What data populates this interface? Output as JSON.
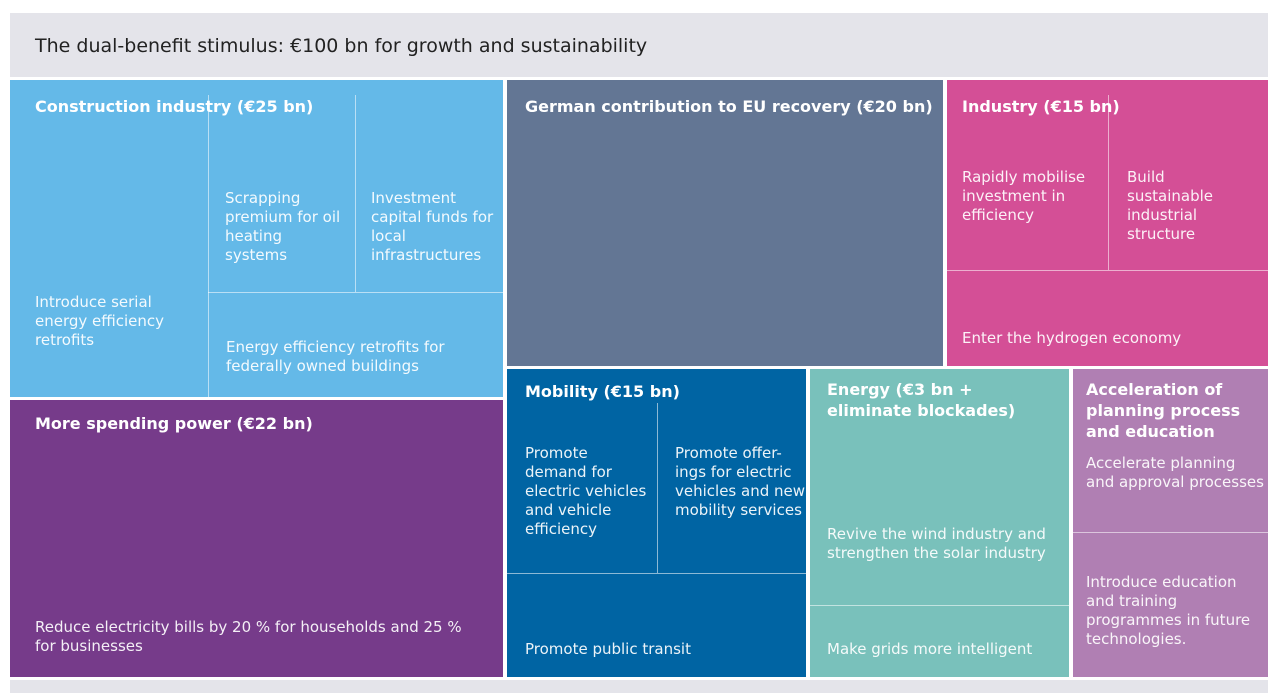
{
  "header": {
    "title": "The dual-benefit stimulus: €100 bn for growth and sustainability"
  },
  "blocks": [
    {
      "title": "Construction industry (€25 bn)",
      "items": [
        "Introduce serial energy efficiency retrofits",
        "Scrapping premium for oil heating systems",
        "Investment capital funds for local infrastructures",
        "Energy efficiency retrofits for federally owned buildings"
      ]
    },
    {
      "title": "More spending power (€22 bn)",
      "items": [
        "Reduce electricity bills by 20 % for households and 25 % for businesses"
      ]
    },
    {
      "title": "German contribution to EU recovery (€20 bn)",
      "items": []
    },
    {
      "title": "Industry (€15 bn)",
      "items": [
        "Rapidly mobilise investment in efficiency",
        "Build sustainable industrial structure",
        "Enter the hydrogen economy"
      ]
    },
    {
      "title": "Mobility (€15 bn)",
      "items": [
        "Promote demand for electric vehicles and vehicle efficiency",
        "Promote offer-ings for electric vehicles and new mobility services",
        "Promote public transit"
      ]
    },
    {
      "title": "Energy (€3 bn + eliminate blockades)",
      "items": [
        "Revive the wind industry and strengthen the solar industry",
        "Make grids more intelligent"
      ]
    },
    {
      "title": "Acceleration of planning process and education",
      "items": [
        "Accelerate planning and approval processes",
        "Introduce education and training programmes in future technologies."
      ]
    }
  ]
}
